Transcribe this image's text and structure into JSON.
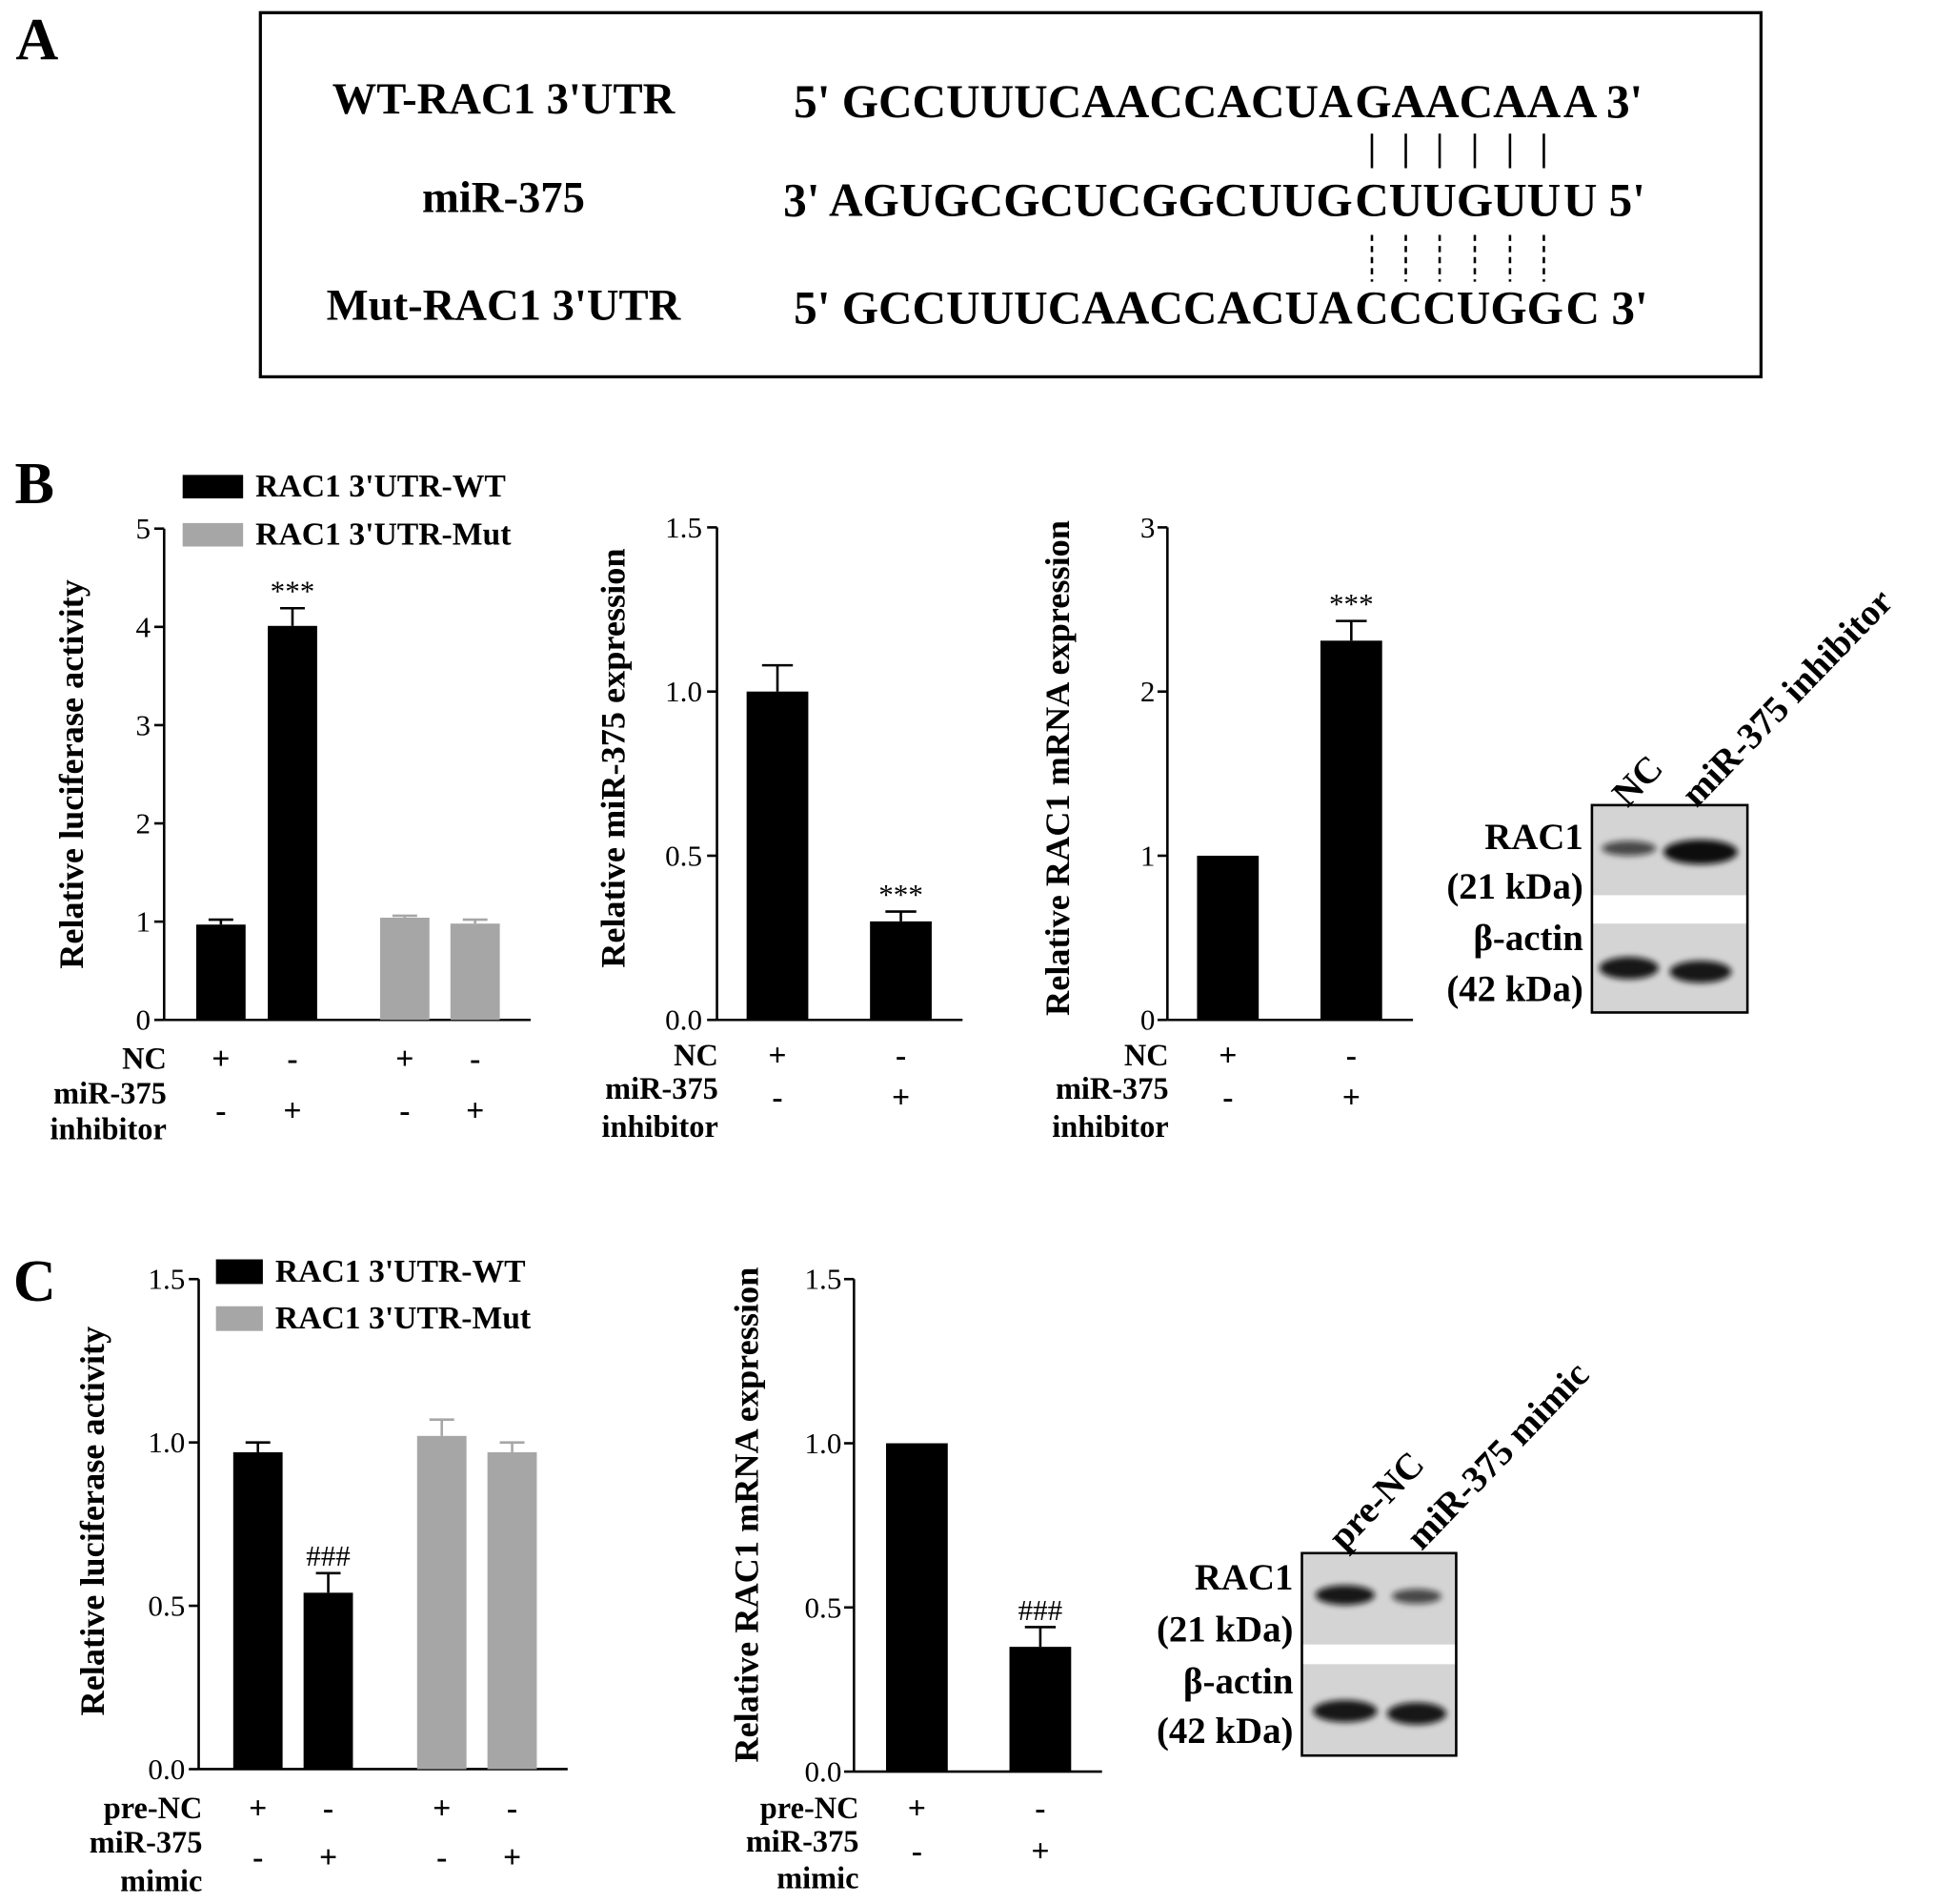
{
  "panel_labels": [
    "A",
    "B",
    "C"
  ],
  "sequence_panel": {
    "rows": [
      {
        "label": "WT-RAC1 3'UTR",
        "prefix": "5' GCCUUUCAACCACUA",
        "site": "GAACAA",
        "suffix": "A 3'"
      },
      {
        "label": "miR-375",
        "prefix": "3' AGUGCGCUCGGCUUG",
        "site": "CUUGUU",
        "suffix": "U 5'"
      },
      {
        "label": "Mut-RAC1 3'UTR",
        "prefix": "5' GCCUUUCAACCACUA",
        "site": "CCCUGG",
        "suffix": "C 3'"
      }
    ],
    "site_color": "#e8221d"
  },
  "chart_data": [
    {
      "type": "bar",
      "ylabel": "Relative luciferase activity",
      "ylim": [
        0,
        5
      ],
      "yticks": [
        0,
        1,
        2,
        3,
        4,
        5
      ],
      "series": [
        {
          "name": "RAC1 3'UTR-WT",
          "color": "#000000",
          "values": [
            0.97,
            4.01,
            null,
            null
          ],
          "errors": [
            0.05,
            0.18,
            null,
            null
          ],
          "annotations": [
            null,
            "***",
            null,
            null
          ]
        },
        {
          "name": "RAC1 3'UTR-Mut",
          "color": "#a6a6a6",
          "values": [
            null,
            null,
            1.04,
            0.98
          ],
          "errors": [
            null,
            null,
            0.02,
            0.04
          ],
          "annotations": [
            null,
            null,
            null,
            null
          ]
        }
      ],
      "conditions": [
        {
          "label": [
            "NC"
          ],
          "marks": [
            "+",
            "-",
            "+",
            "-"
          ]
        },
        {
          "label": [
            "miR-375",
            "inhibitor"
          ],
          "marks": [
            "-",
            "+",
            "-",
            "+"
          ]
        }
      ]
    },
    {
      "type": "bar",
      "ylabel": "Relative miR-375 expression",
      "ylim": [
        0,
        1.5
      ],
      "yticks": [
        {
          "value": 0,
          "label": "0.0"
        },
        0.5,
        {
          "value": 1,
          "label": "1.0"
        },
        1.5
      ],
      "series": [
        {
          "color": "#000000",
          "values": [
            1.0,
            0.3
          ],
          "errors": [
            0.08,
            0.03
          ],
          "annotations": [
            null,
            "***"
          ]
        }
      ],
      "conditions": [
        {
          "label": [
            "NC"
          ],
          "marks": [
            "+",
            "-"
          ]
        },
        {
          "label": [
            "miR-375",
            "inhibitor"
          ],
          "marks": [
            "-",
            "+"
          ]
        }
      ]
    },
    {
      "type": "bar",
      "ylabel": "Relative RAC1 mRNA expression",
      "ylim": [
        0,
        3
      ],
      "yticks": [
        0,
        1,
        2,
        3
      ],
      "series": [
        {
          "color": "#000000",
          "values": [
            1.0,
            2.31
          ],
          "errors": [
            null,
            0.12
          ],
          "annotations": [
            null,
            "***"
          ]
        }
      ],
      "conditions": [
        {
          "label": [
            "NC"
          ],
          "marks": [
            "+",
            "-"
          ]
        },
        {
          "label": [
            "miR-375",
            "inhibitor"
          ],
          "marks": [
            "-",
            "+"
          ]
        }
      ]
    },
    {
      "type": "bar",
      "ylabel": "Relative luciferase activity",
      "ylim": [
        0,
        1.5
      ],
      "yticks": [
        {
          "value": 0,
          "label": "0.0"
        },
        0.5,
        {
          "value": 1,
          "label": "1.0"
        },
        1.5
      ],
      "series": [
        {
          "name": "RAC1 3'UTR-WT",
          "color": "#000000",
          "values": [
            0.97,
            0.54,
            null,
            null
          ],
          "errors": [
            0.03,
            0.06,
            null,
            null
          ],
          "annotations": [
            null,
            "###",
            null,
            null
          ]
        },
        {
          "name": "RAC1 3'UTR-Mut",
          "color": "#a6a6a6",
          "values": [
            null,
            null,
            1.02,
            0.97
          ],
          "errors": [
            null,
            null,
            0.05,
            0.03
          ],
          "annotations": [
            null,
            null,
            null,
            null
          ]
        }
      ],
      "conditions": [
        {
          "label": [
            "pre-NC"
          ],
          "marks": [
            "+",
            "-",
            "+",
            "-"
          ]
        },
        {
          "label": [
            "miR-375",
            "mimic"
          ],
          "marks": [
            "-",
            "+",
            "-",
            "+"
          ]
        }
      ]
    },
    {
      "type": "bar",
      "ylabel": "Relative RAC1 mRNA expression",
      "ylim": [
        0,
        1.5
      ],
      "yticks": [
        {
          "value": 0,
          "label": "0.0"
        },
        0.5,
        {
          "value": 1,
          "label": "1.0"
        },
        1.5
      ],
      "series": [
        {
          "color": "#000000",
          "values": [
            1.0,
            0.38
          ],
          "errors": [
            null,
            0.06
          ],
          "annotations": [
            null,
            "###"
          ]
        }
      ],
      "conditions": [
        {
          "label": [
            "pre-NC"
          ],
          "marks": [
            "+",
            "-"
          ]
        },
        {
          "label": [
            "miR-375",
            "mimic"
          ],
          "marks": [
            "-",
            "+"
          ]
        }
      ]
    }
  ],
  "blots": [
    {
      "lanes": [
        "NC",
        "miR-375 inhibitor"
      ],
      "bands": [
        [
          "RAC1",
          "(21 kDa)"
        ],
        [
          "β-actin",
          "(42 kDa)"
        ]
      ]
    },
    {
      "lanes": [
        "pre-NC",
        "miR-375 mimic"
      ],
      "bands": [
        [
          "RAC1",
          "(21 kDa)"
        ],
        [
          "β-actin",
          "(42 kDa)"
        ]
      ]
    }
  ]
}
